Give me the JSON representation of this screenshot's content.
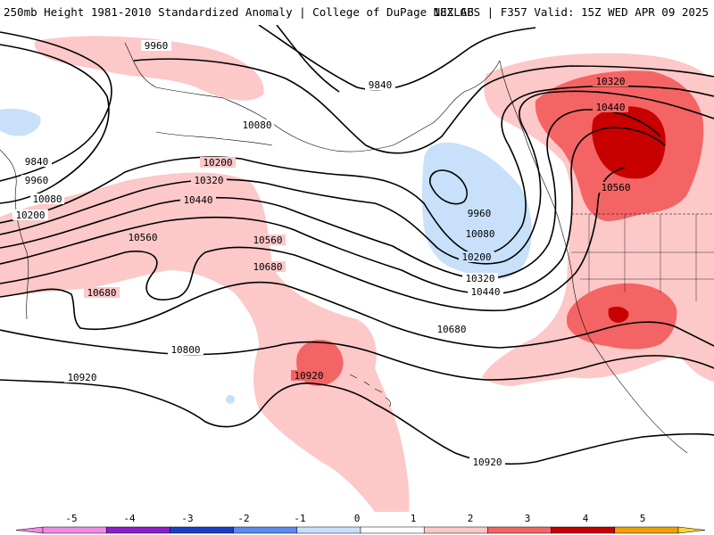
{
  "header": {
    "title_left": "250mb Height 1981-2010 Standardized Anomaly | College of DuPage NEXLAB",
    "title_right": "18Z GFS | F357 Valid: 15Z WED APR 09 2025"
  },
  "colors": {
    "neg5": "#f08ae6",
    "neg4": "#8a1ec8",
    "neg3": "#1e3cc8",
    "neg2": "#5a8af0",
    "neg1": "#c8e0fa",
    "zero": "#ffffff",
    "pos1": "#ffffff",
    "pos2": "#fcc8c8",
    "pos3": "#f46464",
    "pos4": "#c80000",
    "pos5": "#f0a000",
    "over": "#ffd23c",
    "contour": "#000000"
  },
  "contours": [
    {
      "name": "9840a",
      "label": "9840"
    },
    {
      "name": "9840b",
      "label": "9840"
    },
    {
      "name": "9960a",
      "label": "9960"
    },
    {
      "name": "9960b",
      "label": "9960"
    },
    {
      "name": "9960c",
      "label": "9960"
    },
    {
      "name": "10080a",
      "label": "10080"
    },
    {
      "name": "10080b",
      "label": "10080"
    },
    {
      "name": "10080c",
      "label": "10080"
    },
    {
      "name": "10200a",
      "label": "10200"
    },
    {
      "name": "10200b",
      "label": "10200"
    },
    {
      "name": "10200c",
      "label": "10200"
    },
    {
      "name": "10320a",
      "label": "10320"
    },
    {
      "name": "10320b",
      "label": "10320"
    },
    {
      "name": "10320c",
      "label": "10320"
    },
    {
      "name": "10440a",
      "label": "10440"
    },
    {
      "name": "10440b",
      "label": "10440"
    },
    {
      "name": "10440c",
      "label": "10440"
    },
    {
      "name": "10560a",
      "label": "10560"
    },
    {
      "name": "10560b",
      "label": "10560"
    },
    {
      "name": "10560c",
      "label": "10560"
    },
    {
      "name": "10680a",
      "label": "10680"
    },
    {
      "name": "10680b",
      "label": "10680"
    },
    {
      "name": "10680c",
      "label": "10680"
    },
    {
      "name": "10800a",
      "label": "10800"
    },
    {
      "name": "10920a",
      "label": "10920"
    },
    {
      "name": "10920b",
      "label": "10920"
    },
    {
      "name": "10920c",
      "label": "10920"
    }
  ],
  "colorbar": {
    "ticks": [
      "-5",
      "-4",
      "-3",
      "-2",
      "-1",
      "0",
      "1",
      "2",
      "3",
      "4",
      "5"
    ]
  }
}
